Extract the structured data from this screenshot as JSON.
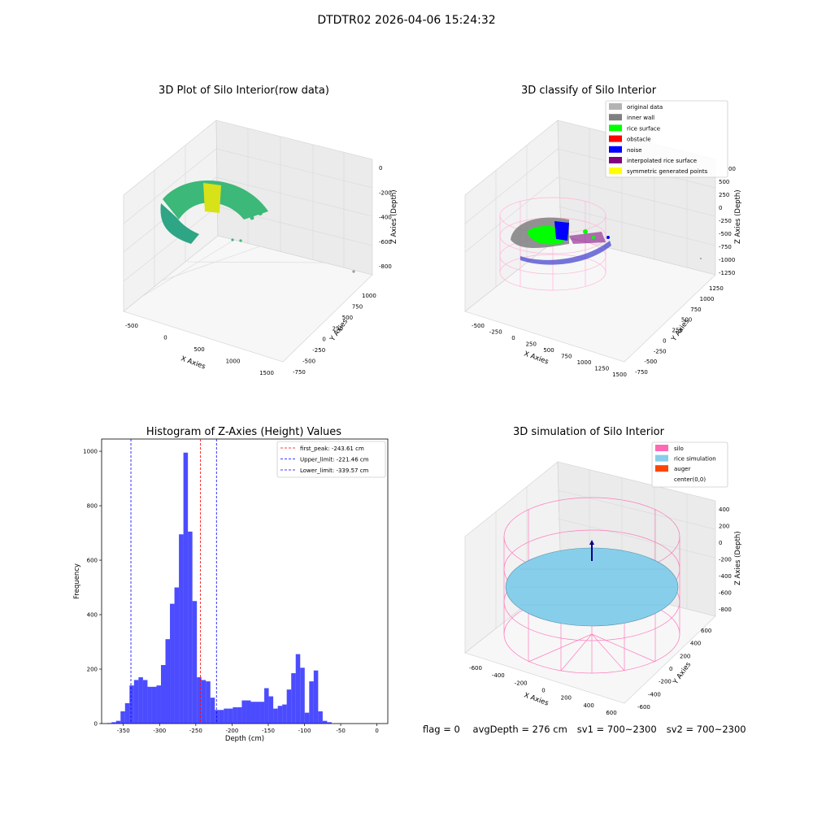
{
  "suptitle": "DTDTR02 2026-04-06 15:24:32",
  "panels": {
    "raw": {
      "title": "3D Plot of Silo Interior(row data)"
    },
    "classify": {
      "title": "3D classify of Silo Interior",
      "legend": [
        {
          "label": "original data",
          "color": "#b3b3b3"
        },
        {
          "label": "inner wall",
          "color": "#808080"
        },
        {
          "label": "rice surface",
          "color": "#00ff00"
        },
        {
          "label": "obstacle",
          "color": "#ff0000"
        },
        {
          "label": "noise",
          "color": "#0000ff"
        },
        {
          "label": "interpolated rice surface",
          "color": "#800080"
        },
        {
          "label": "symmetric generated points",
          "color": "#ffff00"
        }
      ]
    },
    "simulation": {
      "title": "3D simulation of Silo Interior",
      "legend": [
        {
          "label": "silo",
          "color": "#ff69b4"
        },
        {
          "label": "rice simulation",
          "color": "#87ceeb"
        },
        {
          "label": "auger",
          "color": "#ff4500"
        },
        {
          "label": "center(0,0)",
          "color": ""
        }
      ]
    }
  },
  "chart_data": [
    {
      "type": "scatter",
      "title": "3D Plot of Silo Interior(row data)",
      "xlabel": "X Axies",
      "ylabel": "Y Axies",
      "zlabel": "Z Axies (Depth)",
      "xticks": [
        "-500",
        "0",
        "500",
        "1000",
        "1500"
      ],
      "yticks": [
        "-750",
        "-500",
        "-250",
        "0",
        "250",
        "500",
        "750",
        "1000"
      ],
      "zticks": [
        "0",
        "-200",
        "-400",
        "-600",
        "-800"
      ],
      "grid": true
    },
    {
      "type": "scatter",
      "title": "3D classify of Silo Interior",
      "xlabel": "X Axies",
      "ylabel": "Y Axies",
      "zlabel": "Z Axies (Depth)",
      "xticks": [
        "-500",
        "-250",
        "0",
        "250",
        "500",
        "750",
        "1000",
        "1250",
        "1500"
      ],
      "yticks": [
        "-750",
        "-500",
        "-250",
        "0",
        "250",
        "500",
        "750",
        "1000",
        "1250"
      ],
      "zticks": [
        "500",
        "250",
        "0",
        "-250",
        "-500",
        "-750",
        "-1000",
        "-1250"
      ],
      "zticks_partial": "00",
      "legend_position": "top-right",
      "grid": true
    },
    {
      "type": "bar",
      "title": "Histogram of Z-Axies (Height) Values",
      "xlabel": "Depth (cm)",
      "ylabel": "Frequency",
      "xlim": [
        -380,
        15
      ],
      "ylim": [
        0,
        1045
      ],
      "xticks": [
        -350,
        -300,
        -250,
        -200,
        -150,
        -100,
        -50,
        0
      ],
      "yticks": [
        0,
        200,
        400,
        600,
        800,
        1000
      ],
      "bin_start": -372.5,
      "bin_width": 6.2,
      "values": [
        2,
        5,
        10,
        45,
        75,
        140,
        160,
        170,
        160,
        135,
        135,
        140,
        215,
        310,
        440,
        500,
        695,
        995,
        705,
        450,
        170,
        160,
        155,
        95,
        50,
        50,
        55,
        55,
        60,
        60,
        85,
        85,
        80,
        80,
        80,
        130,
        100,
        55,
        65,
        70,
        125,
        185,
        255,
        205,
        40,
        155,
        195,
        45,
        10,
        5
      ],
      "color": "#0000ff",
      "vlines": [
        {
          "label": "first_peak: -243.61 cm",
          "x": -243.61,
          "color": "#ff0000"
        },
        {
          "label": "Upper_limit: -221.46 cm",
          "x": -221.46,
          "color": "#0000ff"
        },
        {
          "label": "Lower_limit: -339.57 cm",
          "x": -339.57,
          "color": "#0000ff"
        }
      ],
      "legend_position": "top-right"
    },
    {
      "type": "scatter",
      "title": "3D simulation of Silo Interior",
      "xlabel": "X Axies",
      "ylabel": "Y Axies",
      "zlabel": "Z Axies (Depth)",
      "xticks": [
        "-600",
        "-400",
        "-200",
        "0",
        "200",
        "400",
        "600"
      ],
      "yticks": [
        "-600",
        "-400",
        "-200",
        "0",
        "200",
        "400",
        "600"
      ],
      "zticks": [
        "400",
        "200",
        "0",
        "-200",
        "-400",
        "-600",
        "-800"
      ],
      "legend_position": "top-right",
      "grid": true
    }
  ],
  "footer": {
    "flag": "flag = 0",
    "avg": "avgDepth = 276 cm",
    "sv1": "sv1 = 700~2300",
    "sv2": "sv2 = 700~2300"
  }
}
